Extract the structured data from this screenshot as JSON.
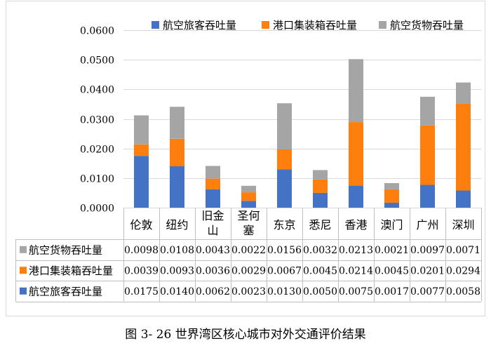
{
  "chart_data": {
    "type": "bar",
    "stacked": true,
    "categories": [
      "伦敦",
      "纽约",
      "旧金山",
      "圣何塞",
      "东京",
      "悉尼",
      "香港",
      "澳门",
      "广州",
      "深圳"
    ],
    "category_lines": [
      [
        "伦敦"
      ],
      [
        "纽约"
      ],
      [
        "旧金",
        "山"
      ],
      [
        "圣何",
        "塞"
      ],
      [
        "东京"
      ],
      [
        "悉尼"
      ],
      [
        "香港"
      ],
      [
        "澳门"
      ],
      [
        "广州"
      ],
      [
        "深圳"
      ]
    ],
    "series": [
      {
        "name": "航空旅客吞吐量",
        "color": "#4472C4",
        "values": [
          0.0175,
          0.014,
          0.0062,
          0.0023,
          0.013,
          0.005,
          0.0075,
          0.0017,
          0.0077,
          0.0058
        ],
        "labels": [
          "0.0175",
          "0.0140",
          "0.0062",
          "0.0023",
          "0.0130",
          "0.0050",
          "0.0075",
          "0.0017",
          "0.0077",
          "0.0058"
        ]
      },
      {
        "name": "港口集装箱吞吐量",
        "color": "#FF7F0E",
        "values": [
          0.0039,
          0.0093,
          0.0036,
          0.0029,
          0.0067,
          0.0045,
          0.0214,
          0.0045,
          0.0201,
          0.0294
        ],
        "labels": [
          "0.0039",
          "0.0093",
          "0.0036",
          "0.0029",
          "0.0067",
          "0.0045",
          "0.0214",
          "0.0045",
          "0.0201",
          "0.0294"
        ]
      },
      {
        "name": "航空货物吞吐量",
        "color": "#A5A5A5",
        "values": [
          0.0098,
          0.0108,
          0.0043,
          0.0022,
          0.0156,
          0.0032,
          0.0213,
          0.0021,
          0.0097,
          0.0071
        ],
        "labels": [
          "0.0098",
          "0.0108",
          "0.0043",
          "0.0022",
          "0.0156",
          "0.0032",
          "0.0213",
          "0.0021",
          "0.0097",
          "0.0071"
        ]
      }
    ],
    "table_row_order": [
      2,
      1,
      0
    ],
    "legend_order": [
      0,
      1,
      2
    ],
    "ylim": [
      0,
      0.06
    ],
    "yticks": [
      0,
      0.01,
      0.02,
      0.03,
      0.04,
      0.05,
      0.06
    ],
    "ytick_labels": [
      "0.0000",
      "0.0100",
      "0.0200",
      "0.0300",
      "0.0400",
      "0.0500",
      "0.0600"
    ],
    "legend_position": "top",
    "grid": true,
    "title": "",
    "xlabel": "",
    "ylabel": ""
  },
  "caption": "图 3- 26 世界湾区核心城市对外交通评价结果"
}
